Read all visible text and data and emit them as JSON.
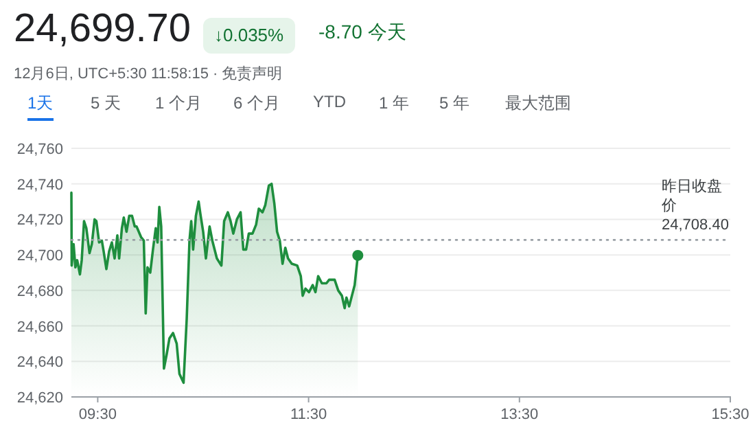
{
  "chart_data": {
    "type": "area",
    "title": "24,699.70",
    "subtitle": "12月6日, UTC+5:30 11:58:15 · 免责声明",
    "annotations": [
      "↓0.035%",
      "-8.70 今天",
      "1天",
      "5 天",
      "1 个月",
      "6 个月",
      "YTD",
      "1 年",
      "5 年",
      "最大范围"
    ],
    "xlim": [
      9.25,
      15.5
    ],
    "xticks": [
      {
        "value": 9.5,
        "label": "09:30"
      },
      {
        "value": 11.5,
        "label": "11:30"
      },
      {
        "value": 13.5,
        "label": "13:30"
      },
      {
        "value": 15.5,
        "label": "15:30"
      }
    ],
    "ylim": [
      24620,
      24760
    ],
    "yticks": [
      {
        "value": 24620,
        "label": "24,620"
      },
      {
        "value": 24640,
        "label": "24,640"
      },
      {
        "value": 24660,
        "label": "24,660"
      },
      {
        "value": 24680,
        "label": "24,680"
      },
      {
        "value": 24700,
        "label": "24,700"
      },
      {
        "value": 24720,
        "label": "24,720"
      },
      {
        "value": 24740,
        "label": "24,740"
      },
      {
        "value": 24760,
        "label": "24,760"
      }
    ],
    "grid": "y",
    "ref_lines": [
      {
        "axis": "y",
        "value": 24708.4,
        "label": "昨日收盘价 24,708.40",
        "color": "#9aa0a6",
        "line_style": "dotted"
      }
    ],
    "series": [
      {
        "color": "#1e8e3e",
        "x": [
          9.25,
          9.253,
          9.271,
          9.288,
          9.305,
          9.331,
          9.348,
          9.37,
          9.392,
          9.422,
          9.444,
          9.47,
          9.487,
          9.513,
          9.539,
          9.556,
          9.582,
          9.608,
          9.634,
          9.66,
          9.686,
          9.703,
          9.729,
          9.747,
          9.773,
          9.799,
          9.825,
          9.851,
          9.868,
          9.911,
          9.937,
          9.955,
          9.972,
          9.998,
          10.024,
          10.05,
          10.067,
          10.084,
          10.102,
          10.128,
          10.154,
          10.18,
          10.214,
          10.249,
          10.275,
          10.314,
          10.344,
          10.37,
          10.387,
          10.405,
          10.431,
          10.457,
          10.474,
          10.5,
          10.526,
          10.561,
          10.587,
          10.63,
          10.673,
          10.699,
          10.734,
          10.76,
          10.786,
          10.82,
          10.855,
          10.881,
          10.907,
          10.933,
          10.968,
          11.002,
          11.028,
          11.063,
          11.089,
          11.123,
          11.149,
          11.175,
          11.201,
          11.227,
          11.253,
          11.279,
          11.305,
          11.34,
          11.392,
          11.426,
          11.444,
          11.47,
          11.504,
          11.539,
          11.565,
          11.591,
          11.626,
          11.669,
          11.695,
          11.747,
          11.781,
          11.816,
          11.842,
          11.859,
          11.885,
          11.911,
          11.937,
          11.967
        ],
        "values": [
          24735,
          24694,
          24706,
          24693,
          24697,
          24689,
          24697,
          24719,
          24715,
          24701,
          24706,
          24720,
          24719,
          24707,
          24708,
          24702,
          24692,
          24702,
          24707,
          24698,
          24711,
          24698,
          24715,
          24721,
          24713,
          24722,
          24722,
          24716,
          24716,
          24710,
          24708,
          24667,
          24693,
          24690,
          24703,
          24715,
          24707,
          24727,
          24716,
          24636,
          24644,
          24653,
          24656,
          24650,
          24633,
          24628,
          24664,
          24708,
          24719,
          24703,
          24722,
          24730,
          24723,
          24713,
          24698,
          24716,
          24708,
          24698,
          24694,
          24719,
          24724,
          24719,
          24712,
          24720,
          24724,
          24703,
          24703,
          24712,
          24712,
          24717,
          24726,
          24724,
          24728,
          24739,
          24740,
          24729,
          24713,
          24708,
          24695,
          24704,
          24698,
          24695,
          24694,
          24688,
          24677,
          24681,
          24679,
          24683,
          24679,
          24688,
          24684,
          24684,
          24686,
          24686,
          24680,
          24677,
          24670,
          24676,
          24671,
          24677,
          24683,
          24699.7
        ]
      },
      {
        "type": "scatter",
        "color": "#1e8e3e",
        "marker": "circle",
        "x": [
          11.967
        ],
        "values": [
          24699.7
        ]
      }
    ]
  }
}
